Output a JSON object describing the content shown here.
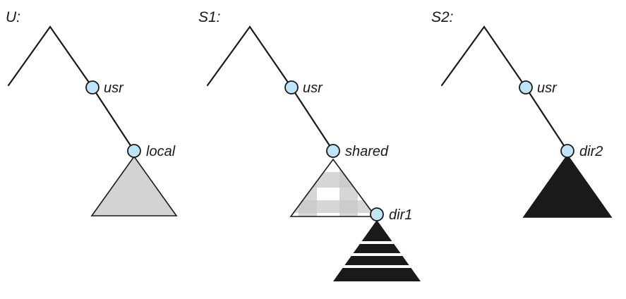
{
  "trees": [
    {
      "id": "U",
      "title": "U:",
      "nodes": [
        "usr",
        "local"
      ],
      "subtree_fill": "#d3d3d3"
    },
    {
      "id": "S1",
      "title": "S1:",
      "nodes": [
        "usr",
        "shared",
        "dir1"
      ],
      "subtree_fill": "checkered",
      "mounted_fill": "striped-black"
    },
    {
      "id": "S2",
      "title": "S2:",
      "nodes": [
        "usr",
        "dir2"
      ],
      "subtree_fill": "#1a1a1a"
    }
  ],
  "colors": {
    "node": "#bfe3f7",
    "line": "#1a1a1a",
    "gray": "#d3d3d3",
    "black": "#1a1a1a"
  }
}
